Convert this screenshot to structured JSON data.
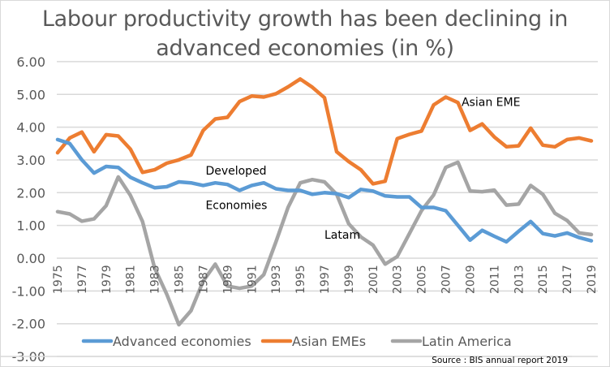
{
  "chart_data": {
    "type": "line",
    "title_line1": "Labour productivity growth has been declining in",
    "title_line2": "advanced economies (in %)",
    "xlabel": "",
    "ylabel": "",
    "ylim": [
      -3,
      6
    ],
    "y_ticks": [
      "6.00",
      "5.00",
      "4.00",
      "3.00",
      "2.00",
      "1.00",
      "0.00",
      "-1.00",
      "-2.00",
      "-3.00"
    ],
    "y_tick_values": [
      6,
      5,
      4,
      3,
      2,
      1,
      0,
      -1,
      -2,
      -3
    ],
    "grid": true,
    "x": [
      1975,
      1976,
      1977,
      1978,
      1979,
      1980,
      1981,
      1982,
      1983,
      1984,
      1985,
      1986,
      1987,
      1988,
      1989,
      1990,
      1991,
      1992,
      1993,
      1994,
      1995,
      1996,
      1997,
      1998,
      1999,
      2000,
      2001,
      2002,
      2003,
      2004,
      2005,
      2006,
      2007,
      2008,
      2009,
      2010,
      2011,
      2012,
      2013,
      2014,
      2015,
      2016,
      2017,
      2018,
      2019
    ],
    "x_tick_labels": [
      "1975",
      "1977",
      "1979",
      "1981",
      "1983",
      "1985",
      "1987",
      "1989",
      "1991",
      "1993",
      "1995",
      "1997",
      "1999",
      "2001",
      "2003",
      "2005",
      "2007",
      "2009",
      "2011",
      "2013",
      "2015",
      "2017",
      "2019"
    ],
    "series": [
      {
        "name": "Advanced economies",
        "color": "#5b9bd5",
        "values": [
          3.62,
          3.5,
          3.0,
          2.6,
          2.8,
          2.77,
          2.47,
          2.3,
          2.15,
          2.18,
          2.33,
          2.3,
          2.22,
          2.3,
          2.25,
          2.07,
          2.22,
          2.3,
          2.12,
          2.07,
          2.07,
          1.95,
          2.0,
          1.97,
          1.85,
          2.1,
          2.05,
          1.9,
          1.87,
          1.87,
          1.55,
          1.55,
          1.45,
          1.0,
          0.55,
          0.85,
          0.67,
          0.5,
          0.82,
          1.12,
          0.75,
          0.68,
          0.77,
          0.63,
          0.53
        ]
      },
      {
        "name": "Asian EMEs",
        "color": "#ed7d31",
        "values": [
          3.22,
          3.67,
          3.85,
          3.25,
          3.77,
          3.73,
          3.33,
          2.62,
          2.7,
          2.9,
          3.0,
          3.15,
          3.9,
          4.25,
          4.3,
          4.78,
          4.95,
          4.92,
          5.02,
          5.23,
          5.47,
          5.22,
          4.9,
          3.25,
          2.95,
          2.7,
          2.27,
          2.35,
          3.65,
          3.78,
          3.88,
          4.68,
          4.92,
          4.75,
          3.9,
          4.1,
          3.7,
          3.4,
          3.43,
          3.97,
          3.45,
          3.4,
          3.62,
          3.67,
          3.58
        ]
      },
      {
        "name": "Latin America",
        "color": "#a5a5a5",
        "values": [
          1.42,
          1.35,
          1.13,
          1.2,
          1.6,
          2.48,
          1.92,
          1.12,
          -0.3,
          -1.1,
          -2.03,
          -1.6,
          -0.7,
          -0.18,
          -0.85,
          -0.92,
          -0.85,
          -0.5,
          0.5,
          1.55,
          2.3,
          2.4,
          2.33,
          1.95,
          1.05,
          0.65,
          0.4,
          -0.18,
          0.05,
          0.75,
          1.45,
          1.93,
          2.77,
          2.93,
          2.05,
          2.03,
          2.08,
          1.62,
          1.65,
          2.22,
          1.95,
          1.37,
          1.15,
          0.77,
          0.72
        ]
      }
    ],
    "annotations": [
      {
        "text": "Asian EME",
        "year": 2008.3,
        "value": 4.65
      },
      {
        "text": "Developed",
        "year": 1987.2,
        "value": 2.55
      },
      {
        "text": "Economies",
        "year": 1987.2,
        "value": 1.5
      },
      {
        "text": "Latam",
        "year": 1997.0,
        "value": 0.6
      }
    ],
    "legend_position": "bottom",
    "source": "Source : BIS annual report 2019",
    "gridline_color": "#d9d9d9"
  }
}
